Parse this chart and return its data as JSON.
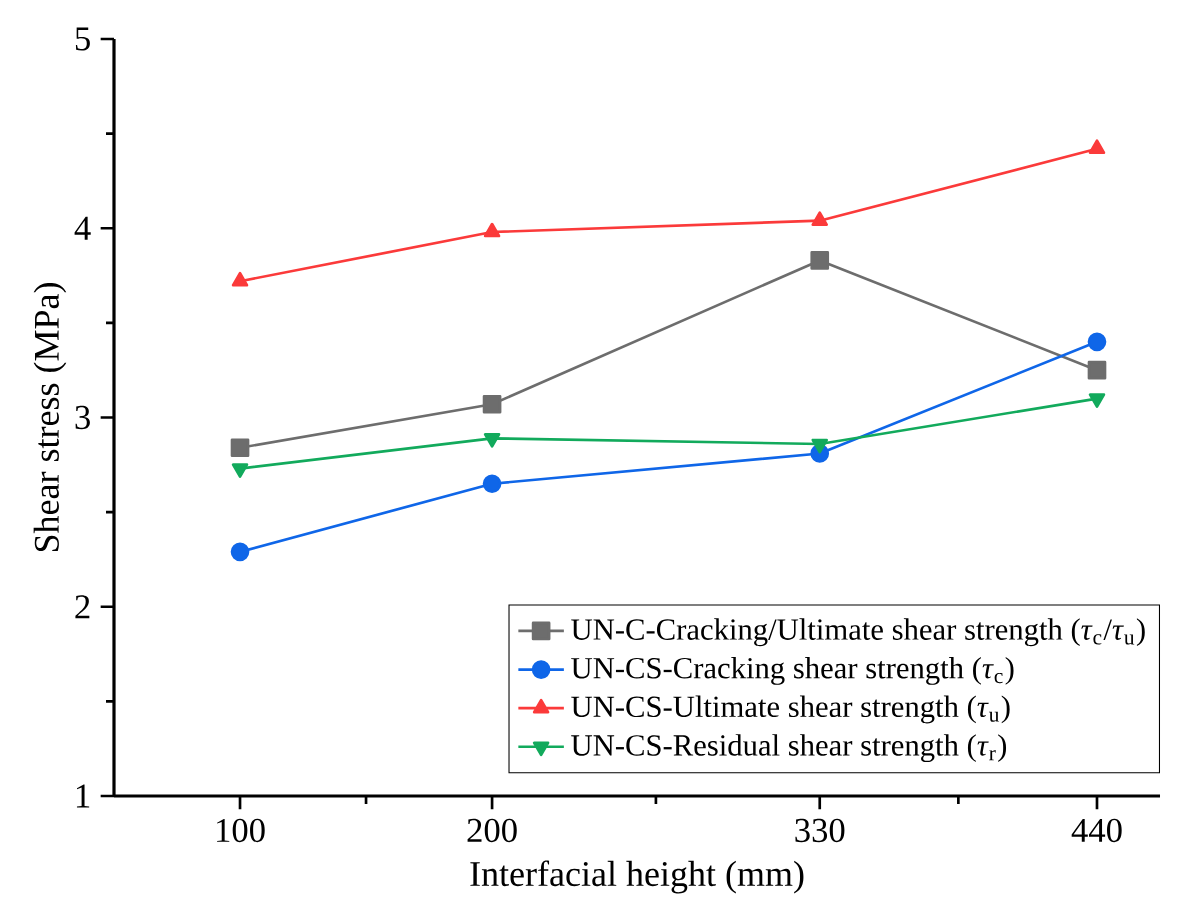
{
  "chart_data": {
    "type": "line",
    "xlabel": "Interfacial height (mm)",
    "ylabel": "Shear stress (MPa)",
    "x": [
      100,
      200,
      330,
      440
    ],
    "series": [
      {
        "name": "UN-C-Cracking/Ultimate shear strength (*τ*$_{c}$/*τ*$_{u}$)",
        "color": "#6d6d6d",
        "marker": "square",
        "values": [
          2.84,
          3.07,
          3.83,
          3.25
        ]
      },
      {
        "name": "UN-CS-Cracking shear strength (*τ*$_{c}$)",
        "color": "#0f66e8",
        "marker": "circle",
        "values": [
          2.29,
          2.65,
          2.81,
          3.4
        ]
      },
      {
        "name": "UN-CS-Ultimate shear strength (*τ*$_{u}$)",
        "color": "#fb3a3a",
        "marker": "triangle",
        "values": [
          3.72,
          3.98,
          4.04,
          4.42
        ]
      },
      {
        "name": "UN-CS-Residual  shear strength (*τ*$_{r}$)",
        "color": "#12aa5c",
        "marker": "triangle-down",
        "values": [
          2.73,
          2.89,
          2.86,
          3.1
        ]
      }
    ],
    "xlim": [
      50,
      465
    ],
    "xticks": [
      100,
      200,
      330,
      440
    ],
    "ylim": [
      1,
      5
    ],
    "yticks": [
      1,
      2,
      3,
      4,
      5
    ],
    "grid": false,
    "legend": "bottom right",
    "line_style": "solid"
  }
}
